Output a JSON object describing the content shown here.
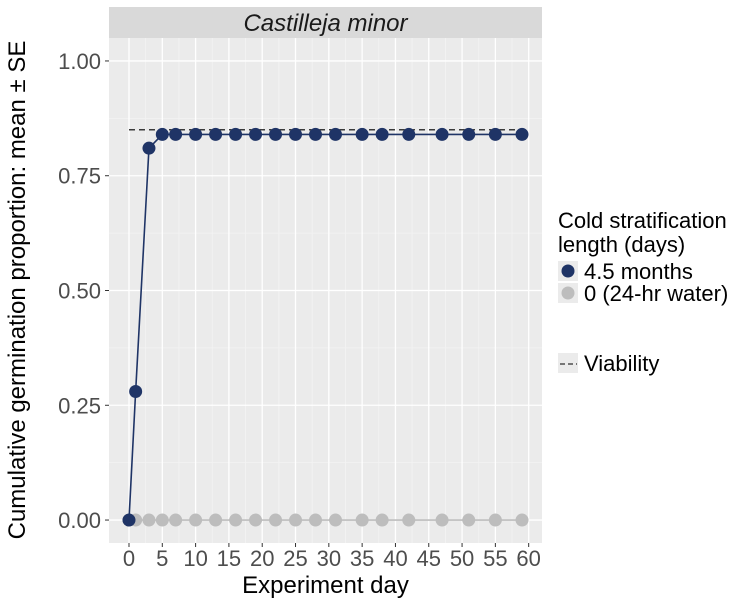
{
  "chart_data": {
    "type": "line",
    "facet_title": "Castilleja minor",
    "xlabel": "Experiment day",
    "ylabel": "Cumulative germination proportion: mean ± SE",
    "xlim": [
      -3,
      62
    ],
    "ylim": [
      -0.05,
      1.05
    ],
    "x_ticks": [
      0,
      5,
      10,
      15,
      20,
      25,
      30,
      35,
      40,
      45,
      50,
      55,
      60
    ],
    "x_tick_labels": [
      "0",
      "5",
      "10",
      "15",
      "20",
      "25",
      "30",
      "35",
      "40",
      "45",
      "50",
      "55",
      "60"
    ],
    "y_ticks": [
      0.0,
      0.25,
      0.5,
      0.75,
      1.0
    ],
    "y_tick_labels": [
      "0.00",
      "0.25",
      "0.50",
      "0.75",
      "1.00"
    ],
    "series": [
      {
        "name": "4.5 months",
        "color": "#1f3466",
        "x": [
          0,
          1,
          3,
          5,
          7,
          10,
          13,
          16,
          19,
          22,
          25,
          28,
          31,
          35,
          38,
          42,
          47,
          51,
          55,
          59
        ],
        "values": [
          0.0,
          0.28,
          0.81,
          0.84,
          0.84,
          0.84,
          0.84,
          0.84,
          0.84,
          0.84,
          0.84,
          0.84,
          0.84,
          0.84,
          0.84,
          0.84,
          0.84,
          0.84,
          0.84,
          0.84
        ]
      },
      {
        "name": "0 (24-hr water)",
        "color": "#bdbdbd",
        "x": [
          0,
          1,
          3,
          5,
          7,
          10,
          13,
          16,
          19,
          22,
          25,
          28,
          31,
          35,
          38,
          42,
          47,
          51,
          55,
          59
        ],
        "values": [
          0,
          0,
          0,
          0,
          0,
          0,
          0,
          0,
          0,
          0,
          0,
          0,
          0,
          0,
          0,
          0,
          0,
          0,
          0,
          0
        ]
      }
    ],
    "reference_line": {
      "name": "Viability",
      "y": 0.85,
      "x_range": [
        0,
        59
      ],
      "style": "dashed"
    },
    "legend": {
      "title_line1": "Cold stratification",
      "title_line2": "length (days)",
      "items": [
        "4.5 months",
        "0 (24-hr water)"
      ],
      "viability_label": "Viability",
      "placement": "right"
    },
    "colors": {
      "panel_bg": "#ebebeb",
      "strip_bg": "#d9d9d9",
      "grid_major": "#ffffff",
      "grid_minor": "#f3f3f3",
      "series_main": "#1f3466",
      "series_control": "#bdbdbd"
    }
  }
}
